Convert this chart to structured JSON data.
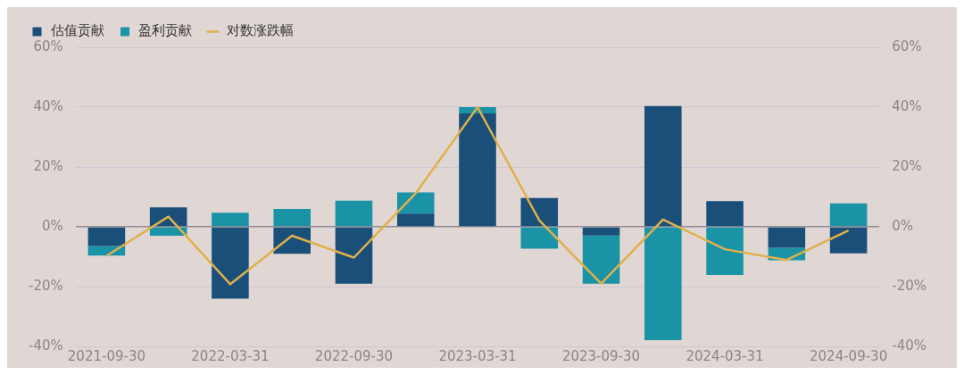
{
  "chart_data": {
    "type": "bar",
    "stacked": true,
    "categories": [
      "2021-09-30",
      null,
      "2022-03-31",
      null,
      "2022-09-30",
      null,
      "2023-03-31",
      null,
      "2023-09-30",
      null,
      "2024-03-31",
      null,
      "2024-09-30"
    ],
    "series": [
      {
        "name": "估值贡献",
        "color": "#1a4f7a",
        "values": [
          -6.4,
          6.5,
          -24.0,
          -9.0,
          -19.0,
          4.4,
          37.9,
          9.6,
          -2.9,
          40.4,
          8.6,
          -7.0,
          -8.9
        ]
      },
      {
        "name": "盈利贡献",
        "color": "#1a93a6",
        "values": [
          -3.2,
          -3.0,
          4.7,
          6.0,
          8.7,
          7.1,
          2.1,
          -7.3,
          -16.1,
          -37.9,
          -16.1,
          -4.2,
          7.8
        ]
      },
      {
        "name": "对数涨跌幅",
        "type": "line",
        "axis": "y2",
        "color": "#e0b04a",
        "values": [
          -9.7,
          3.4,
          -19.2,
          -3.0,
          -10.3,
          11.2,
          40.0,
          2.1,
          -19.0,
          2.4,
          -7.5,
          -11.1,
          -1.2
        ]
      }
    ],
    "ylim": [
      -40,
      60
    ],
    "yticks": [
      {
        "value": -40,
        "label": "-40%"
      },
      {
        "value": -20,
        "label": "-20%"
      },
      {
        "value": 0,
        "label": "0%"
      },
      {
        "value": 20,
        "label": "20%"
      },
      {
        "value": 40,
        "label": "40%"
      },
      {
        "value": 60,
        "label": "60%"
      }
    ],
    "y2lim": [
      -40,
      60
    ],
    "y2ticks": [
      {
        "value": -40,
        "label": "-40%"
      },
      {
        "value": -20,
        "label": "-20%"
      },
      {
        "value": 0,
        "label": "0%"
      },
      {
        "value": 20,
        "label": "20%"
      },
      {
        "value": 40,
        "label": "40%"
      },
      {
        "value": 60,
        "label": "60%"
      }
    ],
    "grid": "y",
    "legend": "top left",
    "marker": "none"
  }
}
